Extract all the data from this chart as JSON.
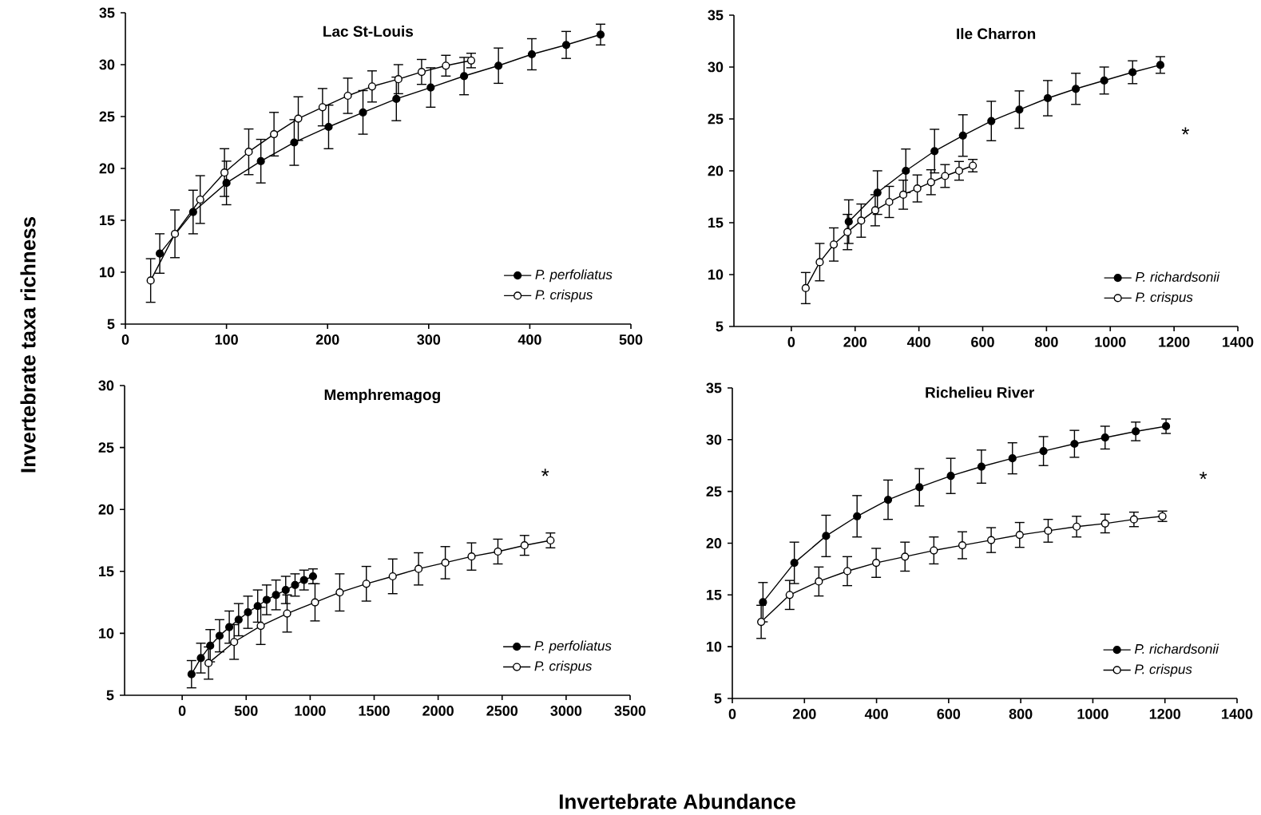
{
  "chart_data": [
    {
      "type": "line",
      "title": "Lac St-Louis",
      "ylabel": "Invertebrate taxa richness",
      "marker": "circle",
      "legend": "bottom right",
      "xlim": [
        0,
        500
      ],
      "xticks": [
        0,
        100,
        200,
        300,
        400,
        500
      ],
      "ylim": [
        5,
        35
      ],
      "yticks": [
        5,
        10,
        15,
        20,
        25,
        30,
        35
      ],
      "series": [
        {
          "name": "P. perfoliatus",
          "color": "#000000",
          "x": [
            34,
            67,
            100,
            134,
            167,
            201,
            235,
            268,
            302,
            335,
            369,
            402,
            436,
            470
          ],
          "values": [
            11.8,
            15.8,
            18.6,
            20.7,
            22.5,
            24.0,
            25.4,
            26.7,
            27.8,
            28.9,
            29.9,
            31.0,
            31.9,
            32.9
          ],
          "errors": [
            1.9,
            2.1,
            2.1,
            2.1,
            2.2,
            2.1,
            2.1,
            2.1,
            1.9,
            1.8,
            1.7,
            1.5,
            1.3,
            1.0
          ]
        },
        {
          "name": "P. crispus",
          "color": "#ffffff",
          "x": [
            25,
            49,
            74,
            98,
            122,
            147,
            171,
            195,
            220,
            244,
            270,
            293,
            317,
            342
          ],
          "values": [
            9.2,
            13.7,
            17.0,
            19.6,
            21.6,
            23.3,
            24.8,
            25.9,
            27.0,
            27.9,
            28.6,
            29.3,
            29.9,
            30.4
          ],
          "errors": [
            2.1,
            2.3,
            2.3,
            2.3,
            2.2,
            2.1,
            2.1,
            1.8,
            1.7,
            1.5,
            1.4,
            1.2,
            1.0,
            0.7
          ]
        }
      ]
    },
    {
      "type": "line",
      "title": "Ile Charron",
      "marker": "circle",
      "legend": "bottom right",
      "xlim": [
        -180,
        1400
      ],
      "xticks": [
        0,
        200,
        400,
        600,
        800,
        1000,
        1200,
        1400
      ],
      "ylim": [
        5,
        35
      ],
      "yticks": [
        5,
        10,
        15,
        20,
        25,
        30,
        35
      ],
      "annotations": [
        "*"
      ],
      "series": [
        {
          "name": "P. richardsonii",
          "color": "#000000",
          "x": [
            180,
            270,
            359,
            449,
            538,
            627,
            715,
            804,
            892,
            981,
            1070,
            1157
          ],
          "values": [
            15.1,
            17.9,
            20.0,
            21.9,
            23.4,
            24.8,
            25.9,
            27.0,
            27.9,
            28.7,
            29.5,
            30.2
          ],
          "errors": [
            2.1,
            2.1,
            2.1,
            2.1,
            2.0,
            1.9,
            1.8,
            1.7,
            1.5,
            1.3,
            1.1,
            0.8
          ]
        },
        {
          "name": "P. crispus",
          "color": "#ffffff",
          "x": [
            45,
            89,
            133,
            176,
            219,
            263,
            307,
            351,
            395,
            438,
            482,
            526,
            569
          ],
          "values": [
            8.7,
            11.2,
            12.9,
            14.1,
            15.2,
            16.2,
            17.0,
            17.7,
            18.3,
            18.9,
            19.5,
            20.0,
            20.5
          ],
          "errors": [
            1.5,
            1.8,
            1.6,
            1.7,
            1.6,
            1.5,
            1.5,
            1.4,
            1.3,
            1.2,
            1.1,
            0.9,
            0.6
          ]
        }
      ]
    },
    {
      "type": "line",
      "title": "Memphremagog",
      "xlabel": "Invertebrate Abundance",
      "marker": "circle",
      "legend": "bottom right",
      "xlim": [
        -450,
        3500
      ],
      "xticks": [
        0,
        500,
        1000,
        1500,
        2000,
        2500,
        3000,
        3500
      ],
      "ylim": [
        5,
        30
      ],
      "yticks": [
        5,
        10,
        15,
        20,
        25,
        30
      ],
      "annotations": [
        "*"
      ],
      "series": [
        {
          "name": "P. perfoliatus",
          "color": "#000000",
          "x": [
            73,
            146,
            219,
            292,
            368,
            441,
            514,
            590,
            660,
            733,
            809,
            882,
            952,
            1022
          ],
          "values": [
            6.7,
            8.0,
            9.0,
            9.8,
            10.5,
            11.1,
            11.7,
            12.2,
            12.7,
            13.1,
            13.5,
            13.9,
            14.3,
            14.6
          ],
          "errors": [
            1.1,
            1.2,
            1.3,
            1.3,
            1.3,
            1.3,
            1.3,
            1.3,
            1.2,
            1.2,
            1.1,
            0.9,
            0.8,
            0.6
          ]
        },
        {
          "name": "P. crispus",
          "color": "#ffffff",
          "x": [
            206,
            406,
            614,
            820,
            1038,
            1231,
            1439,
            1645,
            1847,
            2056,
            2261,
            2467,
            2675,
            2878
          ],
          "values": [
            7.6,
            9.3,
            10.6,
            11.6,
            12.5,
            13.3,
            14.0,
            14.6,
            15.2,
            15.7,
            16.2,
            16.6,
            17.1,
            17.5
          ],
          "errors": [
            1.3,
            1.4,
            1.5,
            1.5,
            1.5,
            1.5,
            1.4,
            1.4,
            1.3,
            1.3,
            1.1,
            1.0,
            0.8,
            0.6
          ]
        }
      ]
    },
    {
      "type": "line",
      "title": "Richelieu River",
      "marker": "circle",
      "legend": "bottom right",
      "xlim": [
        0,
        1400
      ],
      "xticks": [
        0,
        200,
        400,
        600,
        800,
        1000,
        1200,
        1400
      ],
      "ylim": [
        5,
        35
      ],
      "yticks": [
        5,
        10,
        15,
        20,
        25,
        30,
        35
      ],
      "annotations": [
        "*"
      ],
      "series": [
        {
          "name": "P. richardsonii",
          "color": "#000000",
          "x": [
            85,
            172,
            260,
            346,
            432,
            519,
            606,
            691,
            777,
            863,
            949,
            1034,
            1119,
            1203
          ],
          "values": [
            14.3,
            18.1,
            20.7,
            22.6,
            24.2,
            25.4,
            26.5,
            27.4,
            28.2,
            28.9,
            29.6,
            30.2,
            30.8,
            31.3
          ],
          "errors": [
            1.9,
            2.0,
            2.0,
            2.0,
            1.9,
            1.8,
            1.7,
            1.6,
            1.5,
            1.4,
            1.3,
            1.1,
            0.9,
            0.7
          ]
        },
        {
          "name": "P. crispus",
          "color": "#ffffff",
          "x": [
            80,
            159,
            240,
            319,
            399,
            479,
            559,
            638,
            718,
            797,
            876,
            955,
            1034,
            1114,
            1193
          ],
          "values": [
            12.4,
            15.0,
            16.3,
            17.3,
            18.1,
            18.7,
            19.3,
            19.8,
            20.3,
            20.8,
            21.2,
            21.6,
            21.9,
            22.3,
            22.6
          ],
          "errors": [
            1.6,
            1.4,
            1.4,
            1.4,
            1.4,
            1.4,
            1.3,
            1.3,
            1.2,
            1.2,
            1.1,
            1.0,
            0.9,
            0.7,
            0.5
          ]
        }
      ]
    }
  ]
}
